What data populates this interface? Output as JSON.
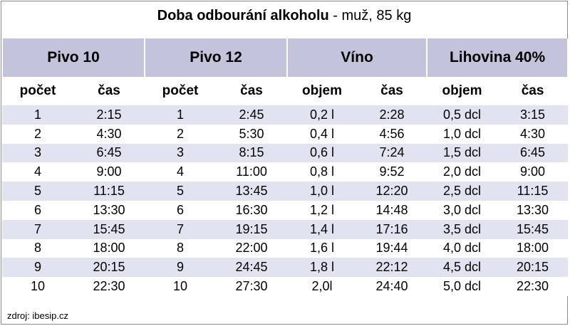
{
  "title": {
    "bold": "Doba odbourání alkoholu",
    "rest": " - muž, 85 kg"
  },
  "groups": [
    "Pivo 10",
    "Pivo 12",
    "Víno",
    "Lihovina 40%"
  ],
  "subheaders": [
    "počet",
    "čas",
    "počet",
    "čas",
    "objem",
    "čas",
    "objem",
    "čas"
  ],
  "rows": [
    [
      "1",
      "2:15",
      "1",
      "2:45",
      "0,2 l",
      "2:28",
      "0,5 dcl",
      "3:15"
    ],
    [
      "2",
      "4:30",
      "2",
      "5:30",
      "0,4 l",
      "4:56",
      "1,0 dcl",
      "4:30"
    ],
    [
      "3",
      "6:45",
      "3",
      "8:15",
      "0,6 l",
      "7:24",
      "1,5 dcl",
      "6:45"
    ],
    [
      "4",
      "9:00",
      "4",
      "11:00",
      "0,8 l",
      "9:52",
      "2,0 dcl",
      "9:00"
    ],
    [
      "5",
      "11:15",
      "5",
      "13:45",
      "1,0 l",
      "12:20",
      "2,5 dcl",
      "11:15"
    ],
    [
      "6",
      "13:30",
      "6",
      "16:30",
      "1,2 l",
      "14:48",
      "3,0 dcl",
      "13:30"
    ],
    [
      "7",
      "15:45",
      "7",
      "19:15",
      "1,4 l",
      "17:16",
      "3,5 dcl",
      "15:45"
    ],
    [
      "8",
      "18:00",
      "8",
      "22:00",
      "1,6 l",
      "19:44",
      "4,0 dcl",
      "18:00"
    ],
    [
      "9",
      "20:15",
      "9",
      "24:45",
      "1,8 l",
      "22:12",
      "4,5 dcl",
      "20:15"
    ],
    [
      "10",
      "22:30",
      "10",
      "27:30",
      "2,0l",
      "24:40",
      "5,0 dcl",
      "22:30"
    ]
  ],
  "source": "zdroj: ibesip.cz",
  "colors": {
    "header_band": "#c3c4dc",
    "row_stripe": "#e2e3f0",
    "border": "#8a8a8a"
  }
}
